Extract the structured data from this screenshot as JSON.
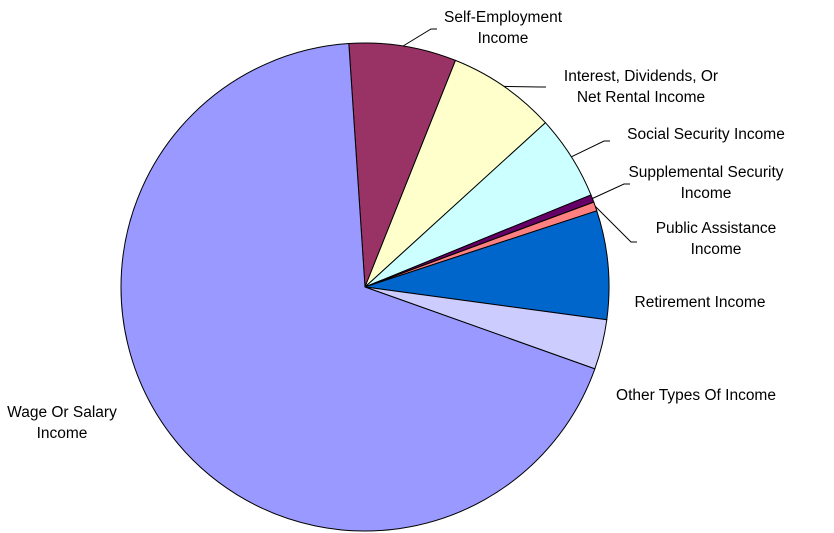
{
  "chart_data": {
    "type": "pie",
    "title": "",
    "start_angle_deg": 93.8,
    "direction": "clockwise",
    "legend": "none",
    "slices": [
      {
        "name": "Self-Employment Income",
        "label_lines": [
          "Self-Employment",
          "Income"
        ],
        "value": 7.1,
        "color": "#993366"
      },
      {
        "name": "Interest, Dividends, Or Net Rental Income",
        "label_lines": [
          "Interest, Dividends, Or",
          "Net Rental Income"
        ],
        "value": 7.2,
        "color": "#FFFFCC"
      },
      {
        "name": "Social Security Income",
        "label_lines": [
          "Social Security Income"
        ],
        "value": 5.6,
        "color": "#CCFFFF"
      },
      {
        "name": "Supplemental Security Income",
        "label_lines": [
          "Supplemental Security",
          "Income"
        ],
        "value": 0.5,
        "color": "#660066"
      },
      {
        "name": "Public Assistance Income",
        "label_lines": [
          "Public Assistance",
          "Income"
        ],
        "value": 0.6,
        "color": "#FF8080"
      },
      {
        "name": "Retirement Income",
        "label_lines": [
          "Retirement Income"
        ],
        "value": 7.2,
        "color": "#0066CC"
      },
      {
        "name": "Other Types Of Income",
        "label_lines": [
          "Other Types Of Income"
        ],
        "value": 3.3,
        "color": "#CCCCFF"
      },
      {
        "name": "Wage Or Salary Income",
        "label_lines": [
          "Wage Or Salary",
          "Income"
        ],
        "value": 68.5,
        "color": "#9999FF"
      }
    ]
  }
}
